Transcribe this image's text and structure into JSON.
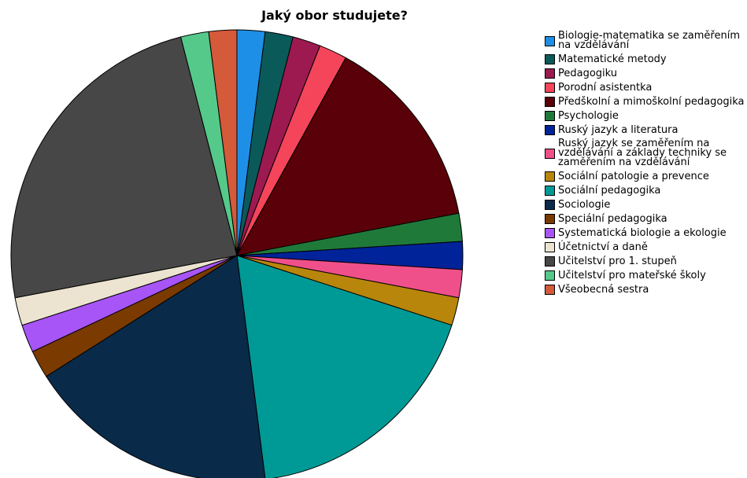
{
  "chart_data": {
    "type": "pie",
    "title": "Jaký obor studujete?",
    "categories": [
      "Biologie-matematika se zaměřením na vzdělávání",
      "Matematické metody",
      "Pedagogiku",
      "Porodní asistentka",
      "Předškolní a mimoškolní pedagogika",
      "Psychologie",
      "Ruský jazyk a literatura",
      "Ruský jazyk se zaměřením na vzdělávání a základy techniky se zaměřením na vzdělávání",
      "Sociální patologie a prevence",
      "Sociální pedagogika",
      "Sociologie",
      "Speciální pedagogika",
      "Systematická biologie a ekologie",
      "Účetnictví a daně",
      "Učitelství pro 1. stupeň",
      "Učitelství pro mateřské školy",
      "Všeobecná sestra"
    ],
    "values": [
      2,
      2,
      2,
      2,
      14,
      2,
      2,
      2,
      2,
      18,
      18,
      2,
      2,
      2,
      24,
      2,
      2
    ],
    "colors": [
      "#1e8fe6",
      "#0b5a5a",
      "#9c1a50",
      "#f5455a",
      "#5a0008",
      "#1f7a3a",
      "#00239a",
      "#f0508a",
      "#b8860b",
      "#009a96",
      "#0a2a4a",
      "#7a3a00",
      "#a855f7",
      "#ece4d0",
      "#474747",
      "#55c98a",
      "#d45a3a"
    ],
    "legend": "right"
  }
}
